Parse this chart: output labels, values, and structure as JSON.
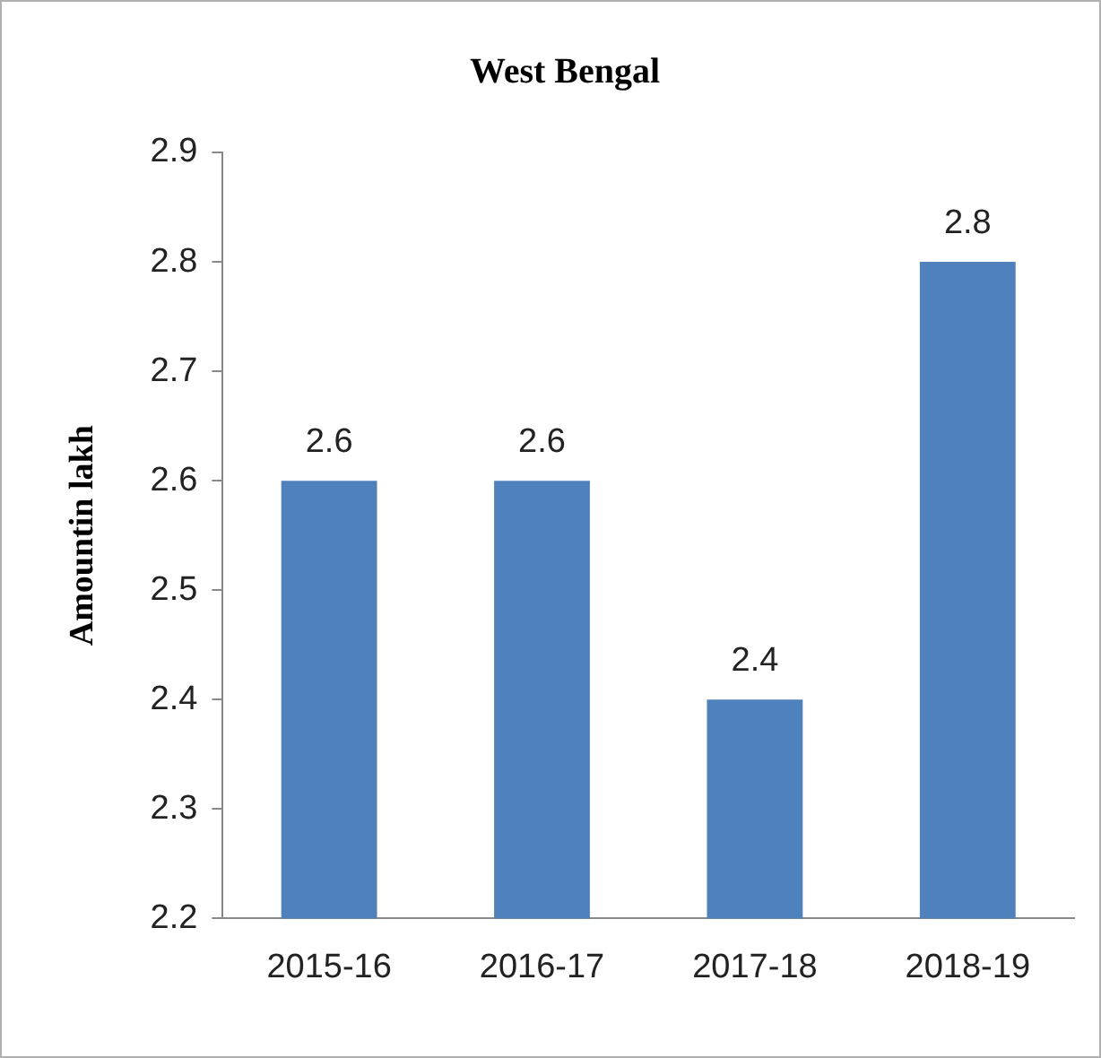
{
  "chart_data": {
    "type": "bar",
    "title": "West Bengal",
    "ylabel": "Amountin lakh",
    "categories": [
      "2015-16",
      "2016-17",
      "2017-18",
      "2018-19"
    ],
    "values": [
      2.6,
      2.6,
      2.4,
      2.8
    ],
    "color": "#4f81bd",
    "ylim": [
      2.2,
      2.9
    ],
    "yticks": [
      2.2,
      2.3,
      2.4,
      2.5,
      2.6,
      2.7,
      2.8,
      2.9
    ],
    "grid": false,
    "legend": false,
    "data_labels": true
  }
}
